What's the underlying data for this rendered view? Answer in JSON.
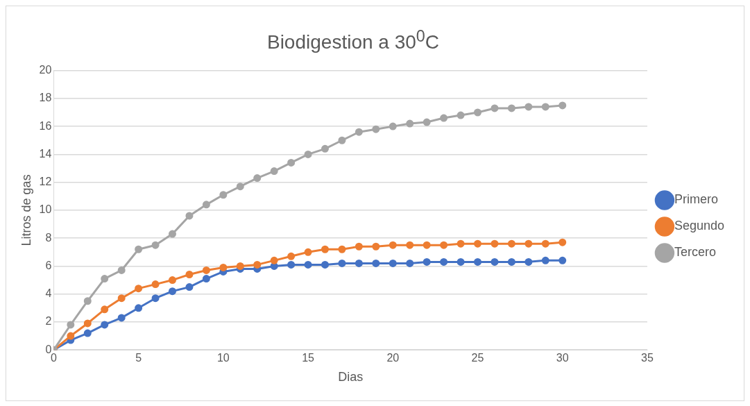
{
  "chart_data": {
    "type": "line",
    "title": "Biodigestion a 30$^{0}$C",
    "xlabel": "Dias",
    "ylabel": "Litros de gas",
    "x": [
      0,
      1,
      2,
      3,
      4,
      5,
      6,
      7,
      8,
      9,
      10,
      11,
      12,
      13,
      14,
      15,
      16,
      17,
      18,
      19,
      20,
      21,
      22,
      23,
      24,
      25,
      26,
      27,
      28,
      29,
      30
    ],
    "xlim": [
      0,
      35
    ],
    "xticks": [
      0,
      5,
      10,
      15,
      20,
      25,
      30,
      35
    ],
    "ylim": [
      0,
      20
    ],
    "yticks": [
      0,
      2,
      4,
      6,
      8,
      10,
      12,
      14,
      16,
      18,
      20
    ],
    "grid": "y",
    "legend": "right",
    "marker": "circle",
    "line_style": "solid",
    "series": [
      {
        "name": "Primero",
        "color": "#4472c4",
        "values": [
          0,
          0.7,
          1.2,
          1.8,
          2.3,
          3.0,
          3.7,
          4.2,
          4.5,
          5.1,
          5.6,
          5.8,
          5.8,
          6.0,
          6.1,
          6.1,
          6.1,
          6.2,
          6.2,
          6.2,
          6.2,
          6.2,
          6.3,
          6.3,
          6.3,
          6.3,
          6.3,
          6.3,
          6.3,
          6.4,
          6.4
        ]
      },
      {
        "name": "Segundo",
        "color": "#ed7d31",
        "values": [
          0,
          1.0,
          1.9,
          2.9,
          3.7,
          4.4,
          4.7,
          5.0,
          5.4,
          5.7,
          5.9,
          6.0,
          6.1,
          6.4,
          6.7,
          7.0,
          7.2,
          7.2,
          7.4,
          7.4,
          7.5,
          7.5,
          7.5,
          7.5,
          7.6,
          7.6,
          7.6,
          7.6,
          7.6,
          7.6,
          7.7
        ]
      },
      {
        "name": "Tercero",
        "color": "#a5a5a5",
        "values": [
          0,
          1.8,
          3.5,
          5.1,
          5.7,
          7.2,
          7.5,
          8.3,
          9.6,
          10.4,
          11.1,
          11.7,
          12.3,
          12.8,
          13.4,
          14.0,
          14.4,
          15.0,
          15.6,
          15.8,
          16.0,
          16.2,
          16.3,
          16.6,
          16.8,
          17.0,
          17.3,
          17.3,
          17.4,
          17.4,
          17.5
        ]
      }
    ]
  }
}
